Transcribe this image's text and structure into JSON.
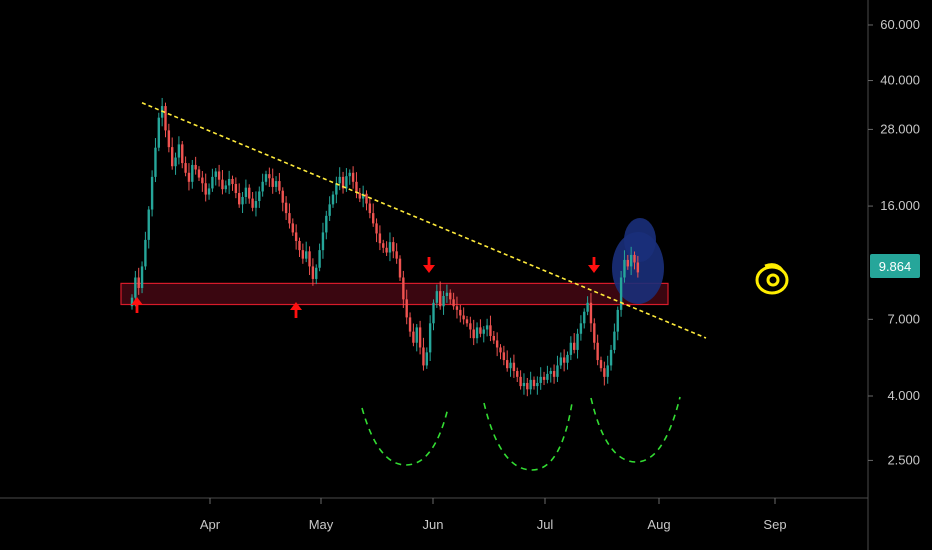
{
  "chart_data": {
    "type": "candlestick",
    "y_scale": "log",
    "ylim": [
      1.9,
      72
    ],
    "y_ticks": [
      {
        "value": 60,
        "label": "60.000"
      },
      {
        "value": 40,
        "label": "40.000"
      },
      {
        "value": 28,
        "label": "28.000"
      },
      {
        "value": 16,
        "label": "16.000"
      },
      {
        "value": 7,
        "label": "7.000"
      },
      {
        "value": 4,
        "label": "4.000"
      },
      {
        "value": 2.5,
        "label": "2.500"
      }
    ],
    "x_ticks": [
      "Apr",
      "May",
      "Jun",
      "Jul",
      "Aug",
      "Sep"
    ],
    "last_price": {
      "value": 9.864,
      "label": "9.864"
    },
    "colors": {
      "up": "#26a69a",
      "down": "#ef5350",
      "background": "#000000",
      "last_price_badge": "#26a69a",
      "trendline": "#ffeb3b",
      "support_zone_fill": "#3a0610",
      "support_zone_border": "#d81b2a",
      "arrows": "#ff1010",
      "cup_curves": "#33dd33",
      "highlight_blob": "#1a2f7a",
      "eye_icon": "#ffee00"
    },
    "closes": [
      8.2,
      9.5,
      8.8,
      10.3,
      12.5,
      15.6,
      19.8,
      24.5,
      30.5,
      33.2,
      27.8,
      24.6,
      21.4,
      22.8,
      25.1,
      21.9,
      20.4,
      19.1,
      21.6,
      20.9,
      19.7,
      18.9,
      17.4,
      18.2,
      19.8,
      20.6,
      19.4,
      18.1,
      18.6,
      19.5,
      18.8,
      17.6,
      16.2,
      17.1,
      18.3,
      16.9,
      15.8,
      16.6,
      17.8,
      19.1,
      20.2,
      19.6,
      18.4,
      19.2,
      17.9,
      16.4,
      15.2,
      14.1,
      13.2,
      12.4,
      11.6,
      10.9,
      11.5,
      10.3,
      9.4,
      10.2,
      11.6,
      13.2,
      14.9,
      16.2,
      17.4,
      18.9,
      19.8,
      18.2,
      19.9,
      20.4,
      19.1,
      17.6,
      16.9,
      17.5,
      16.3,
      15.2,
      14.1,
      13.1,
      12.2,
      11.8,
      11.4,
      12.3,
      11.5,
      10.9,
      9.5,
      8.1,
      7.1,
      6.4,
      5.9,
      6.6,
      5.7,
      5.0,
      5.5,
      6.8,
      7.9,
      8.6,
      7.7,
      8.3,
      8.5,
      8.1,
      7.7,
      7.5,
      7.2,
      7.0,
      6.8,
      6.5,
      6.1,
      6.6,
      6.3,
      6.5,
      6.7,
      6.2,
      6.0,
      5.7,
      5.5,
      5.2,
      4.9,
      5.1,
      4.8,
      4.6,
      4.3,
      4.4,
      4.2,
      4.5,
      4.3,
      4.4,
      4.6,
      4.5,
      4.7,
      4.8,
      4.6,
      5.0,
      5.3,
      5.1,
      5.4,
      5.9,
      5.6,
      6.3,
      6.8,
      7.4,
      7.9,
      6.8,
      5.9,
      5.2,
      4.9,
      4.6,
      5.0,
      5.6,
      6.4,
      7.5,
      9.5,
      10.8,
      10.3,
      11.2,
      10.6,
      9.86
    ],
    "annotations": {
      "trendline": [
        {
          "i": 0,
          "price": 34.5
        },
        {
          "i": 159,
          "price": 6.0
        }
      ],
      "support_zone": [
        7.8,
        9.1
      ],
      "up_arrows": 2,
      "down_arrows": 2,
      "cup_curves": 3
    }
  }
}
